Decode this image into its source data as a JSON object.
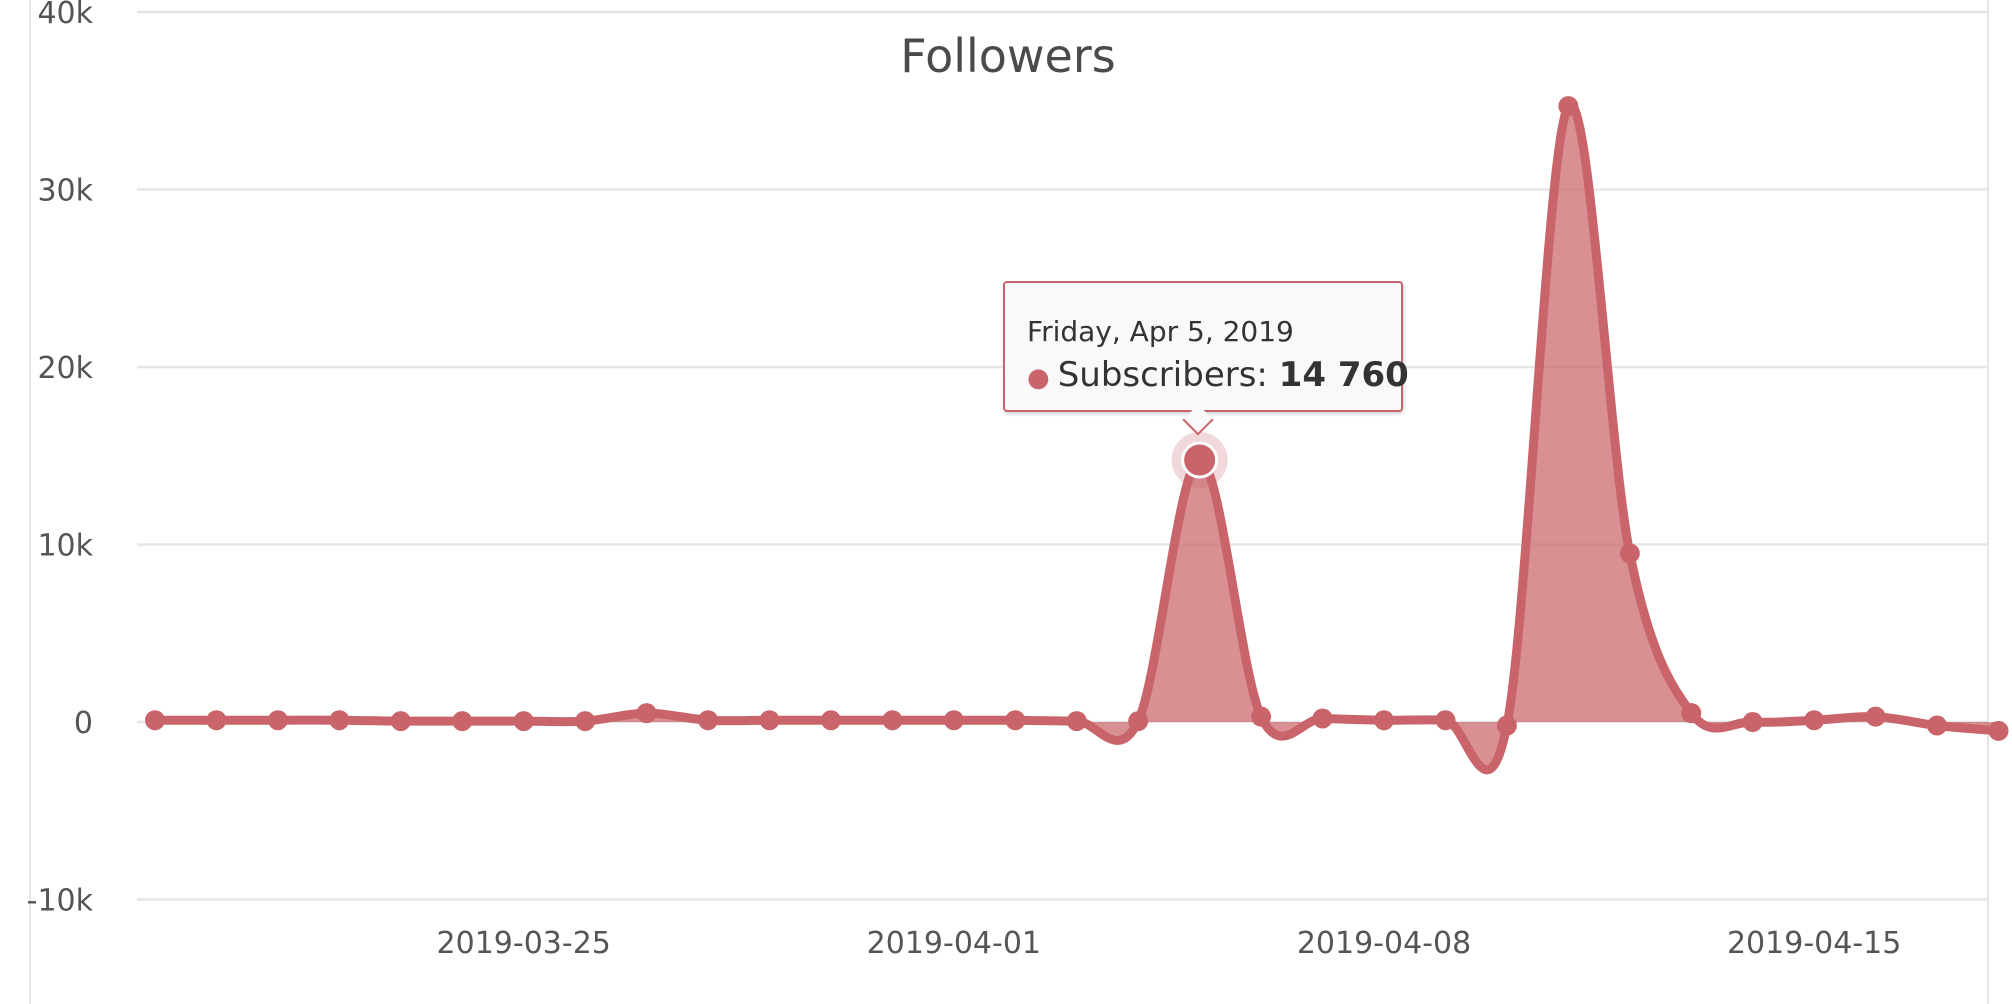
{
  "chart_data": {
    "type": "area",
    "title": "Followers",
    "xlabel": "",
    "ylabel": "",
    "ylim": [
      -10000,
      40000
    ],
    "yticks": [
      {
        "value": -10000,
        "label": "-10k"
      },
      {
        "value": 0,
        "label": "0"
      },
      {
        "value": 10000,
        "label": "10k"
      },
      {
        "value": 20000,
        "label": "20k"
      },
      {
        "value": 30000,
        "label": "30k"
      },
      {
        "value": 40000,
        "label": "40k"
      }
    ],
    "xticks": [
      "2019-03-25",
      "2019-04-01",
      "2019-04-08",
      "2019-04-15"
    ],
    "grid": true,
    "series": [
      {
        "name": "Subscribers",
        "color": "#c9656a",
        "x": [
          "2019-03-19",
          "2019-03-20",
          "2019-03-21",
          "2019-03-22",
          "2019-03-23",
          "2019-03-24",
          "2019-03-25",
          "2019-03-26",
          "2019-03-27",
          "2019-03-28",
          "2019-03-29",
          "2019-03-30",
          "2019-03-31",
          "2019-04-01",
          "2019-04-02",
          "2019-04-03",
          "2019-04-04",
          "2019-04-05",
          "2019-04-06",
          "2019-04-07",
          "2019-04-08",
          "2019-04-09",
          "2019-04-10",
          "2019-04-11",
          "2019-04-12",
          "2019-04-13",
          "2019-04-14",
          "2019-04-15",
          "2019-04-16",
          "2019-04-17",
          "2019-04-18"
        ],
        "values": [
          100,
          100,
          100,
          100,
          50,
          50,
          50,
          50,
          500,
          100,
          100,
          100,
          100,
          100,
          100,
          50,
          50,
          14760,
          300,
          200,
          100,
          100,
          -200,
          34700,
          9500,
          500,
          0,
          100,
          300,
          -200,
          -500
        ]
      }
    ]
  },
  "tooltip": {
    "date": "Friday, Apr 5, 2019",
    "series_label": "Subscribers:",
    "value_text": "14 760",
    "highlight_index": 17
  }
}
